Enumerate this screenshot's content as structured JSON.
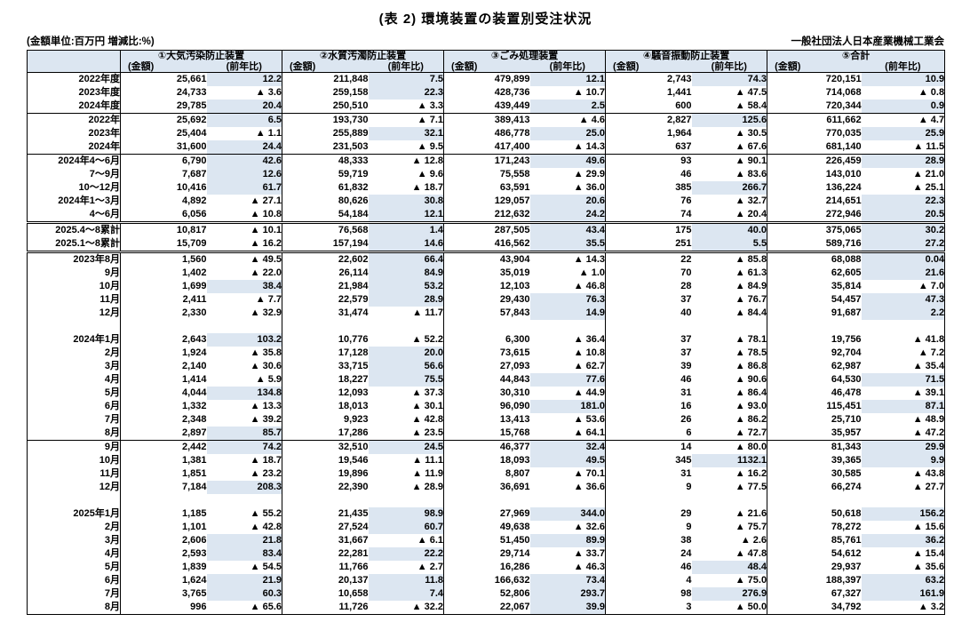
{
  "title": "(表 2) 環境装置の装置別受注状況",
  "unit_note": "(金額単位:百万円 増減比:%)",
  "organization": "一般社団法人日本産業機械工業会",
  "negative_marker": "▲",
  "colors": {
    "highlight_positive": "#dce6f1",
    "header_bg": "#dce6f1",
    "border": "#000000",
    "background": "#ffffff"
  },
  "columns": [
    {
      "name": "①大気汚染防止装置",
      "amount_label": "(金額)",
      "yoy_label": "(前年比)"
    },
    {
      "name": "②水質汚濁防止装置",
      "amount_label": "(金額)",
      "yoy_label": "(前年比)"
    },
    {
      "name": "③ごみ処理装置",
      "amount_label": "(金額)",
      "yoy_label": "(前年比)"
    },
    {
      "name": "④騒音振動防止装置",
      "amount_label": "(金額)",
      "yoy_label": "(前年比)"
    },
    {
      "name": "⑤合計",
      "amount_label": "(金額)",
      "yoy_label": "(前年比)"
    }
  ],
  "row_groups": [
    {
      "divider": "none",
      "rows": [
        {
          "label": "2022年度",
          "c": [
            "25,661",
            "12.2",
            "211,848",
            "7.5",
            "479,899",
            "12.1",
            "2,743",
            "74.3",
            "720,151",
            "10.9"
          ]
        },
        {
          "label": "2023年度",
          "c": [
            "24,733",
            "▲ 3.6",
            "259,158",
            "22.3",
            "428,736",
            "▲ 10.7",
            "1,441",
            "▲ 47.5",
            "714,068",
            "▲ 0.8"
          ]
        },
        {
          "label": "2024年度",
          "c": [
            "29,785",
            "20.4",
            "250,510",
            "▲ 3.3",
            "439,449",
            "2.5",
            "600",
            "▲ 58.4",
            "720,344",
            "0.9"
          ]
        }
      ]
    },
    {
      "divider": "line",
      "rows": [
        {
          "label": "2022年",
          "c": [
            "25,692",
            "6.5",
            "193,730",
            "▲ 7.1",
            "389,413",
            "▲ 4.6",
            "2,827",
            "125.6",
            "611,662",
            "▲ 4.7"
          ]
        },
        {
          "label": "2023年",
          "c": [
            "25,404",
            "▲ 1.1",
            "255,889",
            "32.1",
            "486,778",
            "25.0",
            "1,964",
            "▲ 30.5",
            "770,035",
            "25.9"
          ]
        },
        {
          "label": "2024年",
          "c": [
            "31,600",
            "24.4",
            "231,503",
            "▲ 9.5",
            "417,400",
            "▲ 14.3",
            "637",
            "▲ 67.6",
            "681,140",
            "▲ 11.5"
          ]
        }
      ]
    },
    {
      "divider": "line",
      "rows": [
        {
          "label": "2024年4〜6月",
          "c": [
            "6,790",
            "42.6",
            "48,333",
            "▲ 12.8",
            "171,243",
            "49.6",
            "93",
            "▲ 90.1",
            "226,459",
            "28.9"
          ]
        },
        {
          "label": "7〜9月",
          "c": [
            "7,687",
            "12.6",
            "59,719",
            "▲ 9.6",
            "75,558",
            "▲ 29.9",
            "46",
            "▲ 83.6",
            "143,010",
            "▲ 21.0"
          ]
        },
        {
          "label": "10〜12月",
          "c": [
            "10,416",
            "61.7",
            "61,832",
            "▲ 18.7",
            "63,591",
            "▲ 36.0",
            "385",
            "266.7",
            "136,224",
            "▲ 25.1"
          ]
        },
        {
          "label": "2024年1〜3月",
          "c": [
            "4,892",
            "▲ 27.1",
            "80,626",
            "30.8",
            "129,057",
            "20.6",
            "76",
            "▲ 32.7",
            "214,651",
            "22.3"
          ]
        },
        {
          "label": "4〜6月",
          "c": [
            "6,056",
            "▲ 10.8",
            "54,184",
            "12.1",
            "212,632",
            "24.2",
            "74",
            "▲ 20.4",
            "272,946",
            "20.5"
          ]
        }
      ]
    },
    {
      "divider": "double",
      "rows": [
        {
          "label": "2025.4〜8累計",
          "c": [
            "10,817",
            "▲ 10.1",
            "76,568",
            "1.4",
            "287,505",
            "43.4",
            "175",
            "40.0",
            "375,065",
            "30.2"
          ]
        },
        {
          "label": "2025.1〜8累計",
          "c": [
            "15,709",
            "▲ 16.2",
            "157,194",
            "14.6",
            "416,562",
            "35.5",
            "251",
            "5.5",
            "589,716",
            "27.2"
          ]
        }
      ]
    },
    {
      "divider": "double",
      "rows": [
        {
          "label": "2023年8月",
          "c": [
            "1,560",
            "▲ 49.5",
            "22,602",
            "66.4",
            "43,904",
            "▲ 14.3",
            "22",
            "▲ 85.8",
            "68,088",
            "0.04"
          ]
        },
        {
          "label": "9月",
          "c": [
            "1,402",
            "▲ 22.0",
            "26,114",
            "84.9",
            "35,019",
            "▲ 1.0",
            "70",
            "▲ 61.3",
            "62,605",
            "21.6"
          ]
        },
        {
          "label": "10月",
          "c": [
            "1,699",
            "38.4",
            "21,984",
            "53.2",
            "12,103",
            "▲ 46.8",
            "28",
            "▲ 84.9",
            "35,814",
            "▲ 7.0"
          ]
        },
        {
          "label": "11月",
          "c": [
            "2,411",
            "▲ 7.7",
            "22,579",
            "28.9",
            "29,430",
            "76.3",
            "37",
            "▲ 76.7",
            "54,457",
            "47.3"
          ]
        },
        {
          "label": "12月",
          "c": [
            "2,330",
            "▲ 32.9",
            "31,474",
            "▲ 11.7",
            "57,843",
            "14.9",
            "40",
            "▲ 84.4",
            "91,687",
            "2.2"
          ]
        }
      ]
    },
    {
      "divider": "gap",
      "rows": [
        {
          "label": "",
          "c": []
        }
      ]
    },
    {
      "divider": "none",
      "rows": [
        {
          "label": "2024年1月",
          "c": [
            "2,643",
            "103.2",
            "10,776",
            "▲ 52.2",
            "6,300",
            "▲ 36.4",
            "37",
            "▲ 78.1",
            "19,756",
            "▲ 41.8"
          ]
        },
        {
          "label": "2月",
          "c": [
            "1,924",
            "▲ 35.8",
            "17,128",
            "20.0",
            "73,615",
            "▲ 10.8",
            "37",
            "▲ 78.5",
            "92,704",
            "▲ 7.2"
          ]
        },
        {
          "label": "3月",
          "c": [
            "2,140",
            "▲ 30.6",
            "33,715",
            "56.6",
            "27,093",
            "▲ 62.7",
            "39",
            "▲ 86.8",
            "62,987",
            "▲ 35.4"
          ]
        },
        {
          "label": "4月",
          "c": [
            "1,414",
            "▲ 5.9",
            "18,227",
            "75.5",
            "44,843",
            "77.6",
            "46",
            "▲ 90.6",
            "64,530",
            "71.5"
          ]
        },
        {
          "label": "5月",
          "c": [
            "4,044",
            "134.8",
            "12,093",
            "▲ 37.3",
            "30,310",
            "▲ 44.9",
            "31",
            "▲ 86.4",
            "46,478",
            "▲ 39.1"
          ]
        },
        {
          "label": "6月",
          "c": [
            "1,332",
            "▲ 13.3",
            "18,013",
            "▲ 30.1",
            "96,090",
            "181.0",
            "16",
            "▲ 93.0",
            "115,451",
            "87.1"
          ]
        },
        {
          "label": "7月",
          "c": [
            "2,348",
            "▲ 39.2",
            "9,923",
            "▲ 42.8",
            "13,413",
            "▲ 53.6",
            "26",
            "▲ 86.2",
            "25,710",
            "▲ 48.9"
          ]
        },
        {
          "label": "8月",
          "c": [
            "2,897",
            "85.7",
            "17,286",
            "▲ 23.5",
            "15,768",
            "▲ 64.1",
            "6",
            "▲ 72.7",
            "35,957",
            "▲ 47.2"
          ]
        }
      ]
    },
    {
      "divider": "line",
      "rows": [
        {
          "label": "9月",
          "c": [
            "2,442",
            "74.2",
            "32,510",
            "24.5",
            "46,377",
            "32.4",
            "14",
            "▲ 80.0",
            "81,343",
            "29.9"
          ]
        },
        {
          "label": "10月",
          "c": [
            "1,381",
            "▲ 18.7",
            "19,546",
            "▲ 11.1",
            "18,093",
            "49.5",
            "345",
            "1132.1",
            "39,365",
            "9.9"
          ]
        },
        {
          "label": "11月",
          "c": [
            "1,851",
            "▲ 23.2",
            "19,896",
            "▲ 11.9",
            "8,807",
            "▲ 70.1",
            "31",
            "▲ 16.2",
            "30,585",
            "▲ 43.8"
          ]
        },
        {
          "label": "12月",
          "c": [
            "7,184",
            "208.3",
            "22,390",
            "▲ 28.9",
            "36,691",
            "▲ 36.6",
            "9",
            "▲ 77.5",
            "66,274",
            "▲ 27.7"
          ]
        }
      ]
    },
    {
      "divider": "gap",
      "rows": [
        {
          "label": "",
          "c": []
        }
      ]
    },
    {
      "divider": "none",
      "rows": [
        {
          "label": "2025年1月",
          "c": [
            "1,185",
            "▲ 55.2",
            "21,435",
            "98.9",
            "27,969",
            "344.0",
            "29",
            "▲ 21.6",
            "50,618",
            "156.2"
          ]
        },
        {
          "label": "2月",
          "c": [
            "1,101",
            "▲ 42.8",
            "27,524",
            "60.7",
            "49,638",
            "▲ 32.6",
            "9",
            "▲ 75.7",
            "78,272",
            "▲ 15.6"
          ]
        },
        {
          "label": "3月",
          "c": [
            "2,606",
            "21.8",
            "31,667",
            "▲ 6.1",
            "51,450",
            "89.9",
            "38",
            "▲ 2.6",
            "85,761",
            "36.2"
          ]
        },
        {
          "label": "4月",
          "c": [
            "2,593",
            "83.4",
            "22,281",
            "22.2",
            "29,714",
            "▲ 33.7",
            "24",
            "▲ 47.8",
            "54,612",
            "▲ 15.4"
          ]
        },
        {
          "label": "5月",
          "c": [
            "1,839",
            "▲ 54.5",
            "11,766",
            "▲ 2.7",
            "16,286",
            "▲ 46.3",
            "46",
            "48.4",
            "29,937",
            "▲ 35.6"
          ]
        },
        {
          "label": "6月",
          "c": [
            "1,624",
            "21.9",
            "20,137",
            "11.8",
            "166,632",
            "73.4",
            "4",
            "▲ 75.0",
            "188,397",
            "63.2"
          ]
        },
        {
          "label": "7月",
          "c": [
            "3,765",
            "60.3",
            "10,658",
            "7.4",
            "52,806",
            "293.7",
            "98",
            "276.9",
            "67,327",
            "161.9"
          ]
        },
        {
          "label": "8月",
          "c": [
            "996",
            "▲ 65.6",
            "11,726",
            "▲ 32.2",
            "22,067",
            "39.9",
            "3",
            "▲ 50.0",
            "34,792",
            "▲ 3.2"
          ]
        }
      ]
    }
  ]
}
